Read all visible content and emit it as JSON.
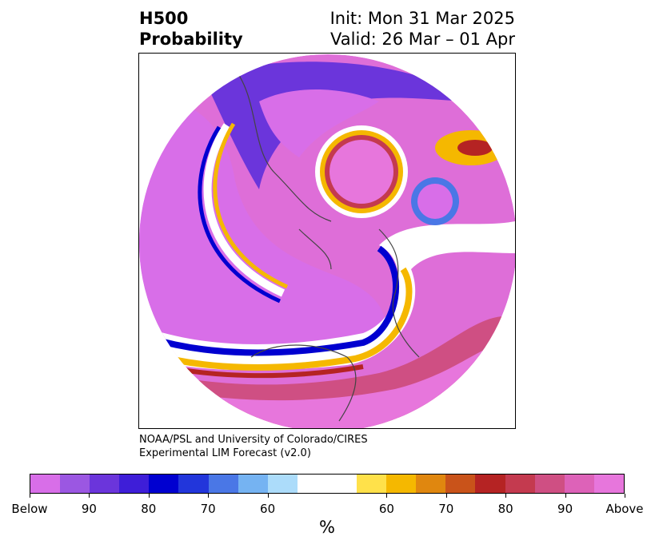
{
  "header": {
    "left_line1": "H500",
    "left_line2": "Probability",
    "right_line1": "Init: Mon 31 Mar 2025",
    "right_line2": "Valid: 26 Mar – 01 Apr"
  },
  "credit": {
    "line1": "NOAA/PSL and University of Colorado/CIRES",
    "line2": "Experimental LIM Forecast (v2.0)"
  },
  "colorbar": {
    "colors": [
      "#d86ee8",
      "#9b57e2",
      "#6b35db",
      "#3e1ed8",
      "#0000d0",
      "#2236db",
      "#4a77e6",
      "#75b3f2",
      "#acdcfa",
      "#ffffff",
      "#ffe14a",
      "#f5b800",
      "#e0870f",
      "#c9531a",
      "#b52323",
      "#c43a4f",
      "#cf4f83",
      "#dd62b8",
      "#e776dc"
    ],
    "ticks": [
      "Below",
      "90",
      "80",
      "70",
      "60",
      "60",
      "70",
      "80",
      "90",
      "Above"
    ],
    "unit": "%"
  }
}
